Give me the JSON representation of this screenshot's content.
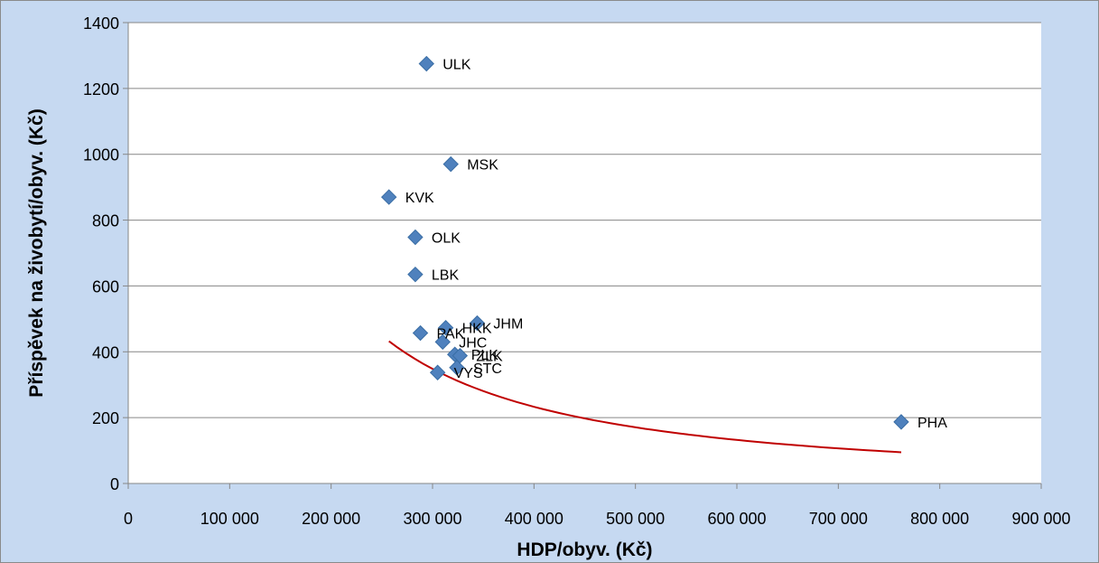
{
  "colors": {
    "background": "#c6d9f1",
    "plot_area": "#ffffff",
    "gridline": "#868686",
    "marker": "#4f81bd",
    "marker_edge": "#3a6ea5",
    "trendline": "#c00000",
    "text": "#000000"
  },
  "chart_data": {
    "type": "scatter",
    "title": "",
    "xlabel": "HDP/obyv. (Kč)",
    "ylabel": "Příspěvek na živobytí/obyv. (Kč)",
    "xlim": [
      0,
      900000
    ],
    "ylim": [
      0,
      1400
    ],
    "x_ticks": [
      0,
      100000,
      200000,
      300000,
      400000,
      500000,
      600000,
      700000,
      800000,
      900000
    ],
    "x_tick_labels": [
      "0",
      "100 000",
      "200 000",
      "300 000",
      "400 000",
      "500 000",
      "600 000",
      "700 000",
      "800 000",
      "900 000"
    ],
    "y_ticks": [
      0,
      200,
      400,
      600,
      800,
      1000,
      1200,
      1400
    ],
    "y_tick_labels": [
      "0",
      "200",
      "400",
      "600",
      "800",
      "1000",
      "1200",
      "1400"
    ],
    "grid": "horizontal",
    "legend": "none",
    "marker": "diamond",
    "points": [
      {
        "label": "ULK",
        "x": 294000,
        "y": 1275
      },
      {
        "label": "MSK",
        "x": 318000,
        "y": 970
      },
      {
        "label": "KVK",
        "x": 257000,
        "y": 870
      },
      {
        "label": "OLK",
        "x": 283000,
        "y": 748
      },
      {
        "label": "LBK",
        "x": 283000,
        "y": 635
      },
      {
        "label": "HKK",
        "x": 313000,
        "y": 473
      },
      {
        "label": "JHM",
        "x": 344000,
        "y": 487
      },
      {
        "label": "PAK",
        "x": 288000,
        "y": 457
      },
      {
        "label": "JHC",
        "x": 310000,
        "y": 430
      },
      {
        "label": "PLK",
        "x": 322000,
        "y": 392
      },
      {
        "label": "ZLK",
        "x": 327000,
        "y": 388
      },
      {
        "label": "STC",
        "x": 324000,
        "y": 352
      },
      {
        "label": "VYS",
        "x": 305000,
        "y": 337
      },
      {
        "label": "PHA",
        "x": 762000,
        "y": 187
      }
    ],
    "trendline": {
      "type": "power",
      "x_range": [
        257000,
        762000
      ],
      "coefficient": 15410000000,
      "exponent": -1.396
    }
  }
}
